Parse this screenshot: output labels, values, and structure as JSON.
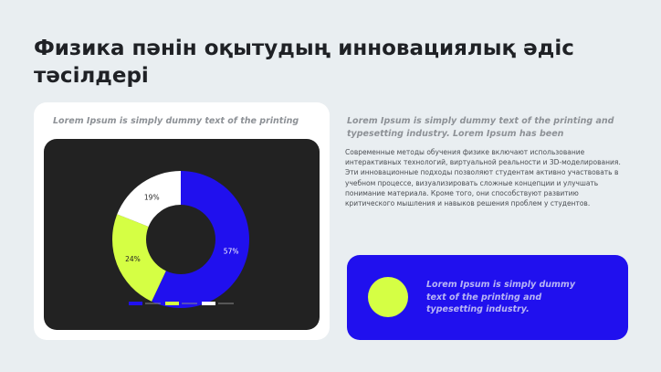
{
  "slide": {
    "title": "Физика пәнін оқытудың инновациялық әдіс тәсілдері"
  },
  "left_card": {
    "caption": "Lorem Ipsum is simply dummy text of the printing"
  },
  "right_section": {
    "heading": "Lorem Ipsum is simply dummy text of the printing and typesetting industry. Lorem Ipsum has been",
    "body": "Современные методы обучения физике включают использование интерактивных технологий, виртуальной реальности и 3D-моделирования. Эти инновационные подходы позволяют студентам активно участвовать в учебном процессе, визуализировать сложные концепции и улучшать понимание материала. Кроме того, они способствуют развитию критического мышления и навыков решения проблем у студентов."
  },
  "blue_card": {
    "text": "Lorem Ipsum is simply dummy text of the printing and typesetting industry."
  },
  "colors": {
    "background": "#e9eef1",
    "accent_blue": "#2010ee",
    "accent_lime": "#d5ff44",
    "panel_dark": "#222222"
  },
  "chart_data": {
    "type": "pie",
    "donut": true,
    "slices": [
      {
        "value": 57,
        "label": "57%",
        "color": "#2010ee"
      },
      {
        "value": 24,
        "label": "24%",
        "color": "#d5ff44"
      },
      {
        "value": 19,
        "label": "19%",
        "color": "#ffffff"
      }
    ],
    "legend_position": "bottom"
  }
}
